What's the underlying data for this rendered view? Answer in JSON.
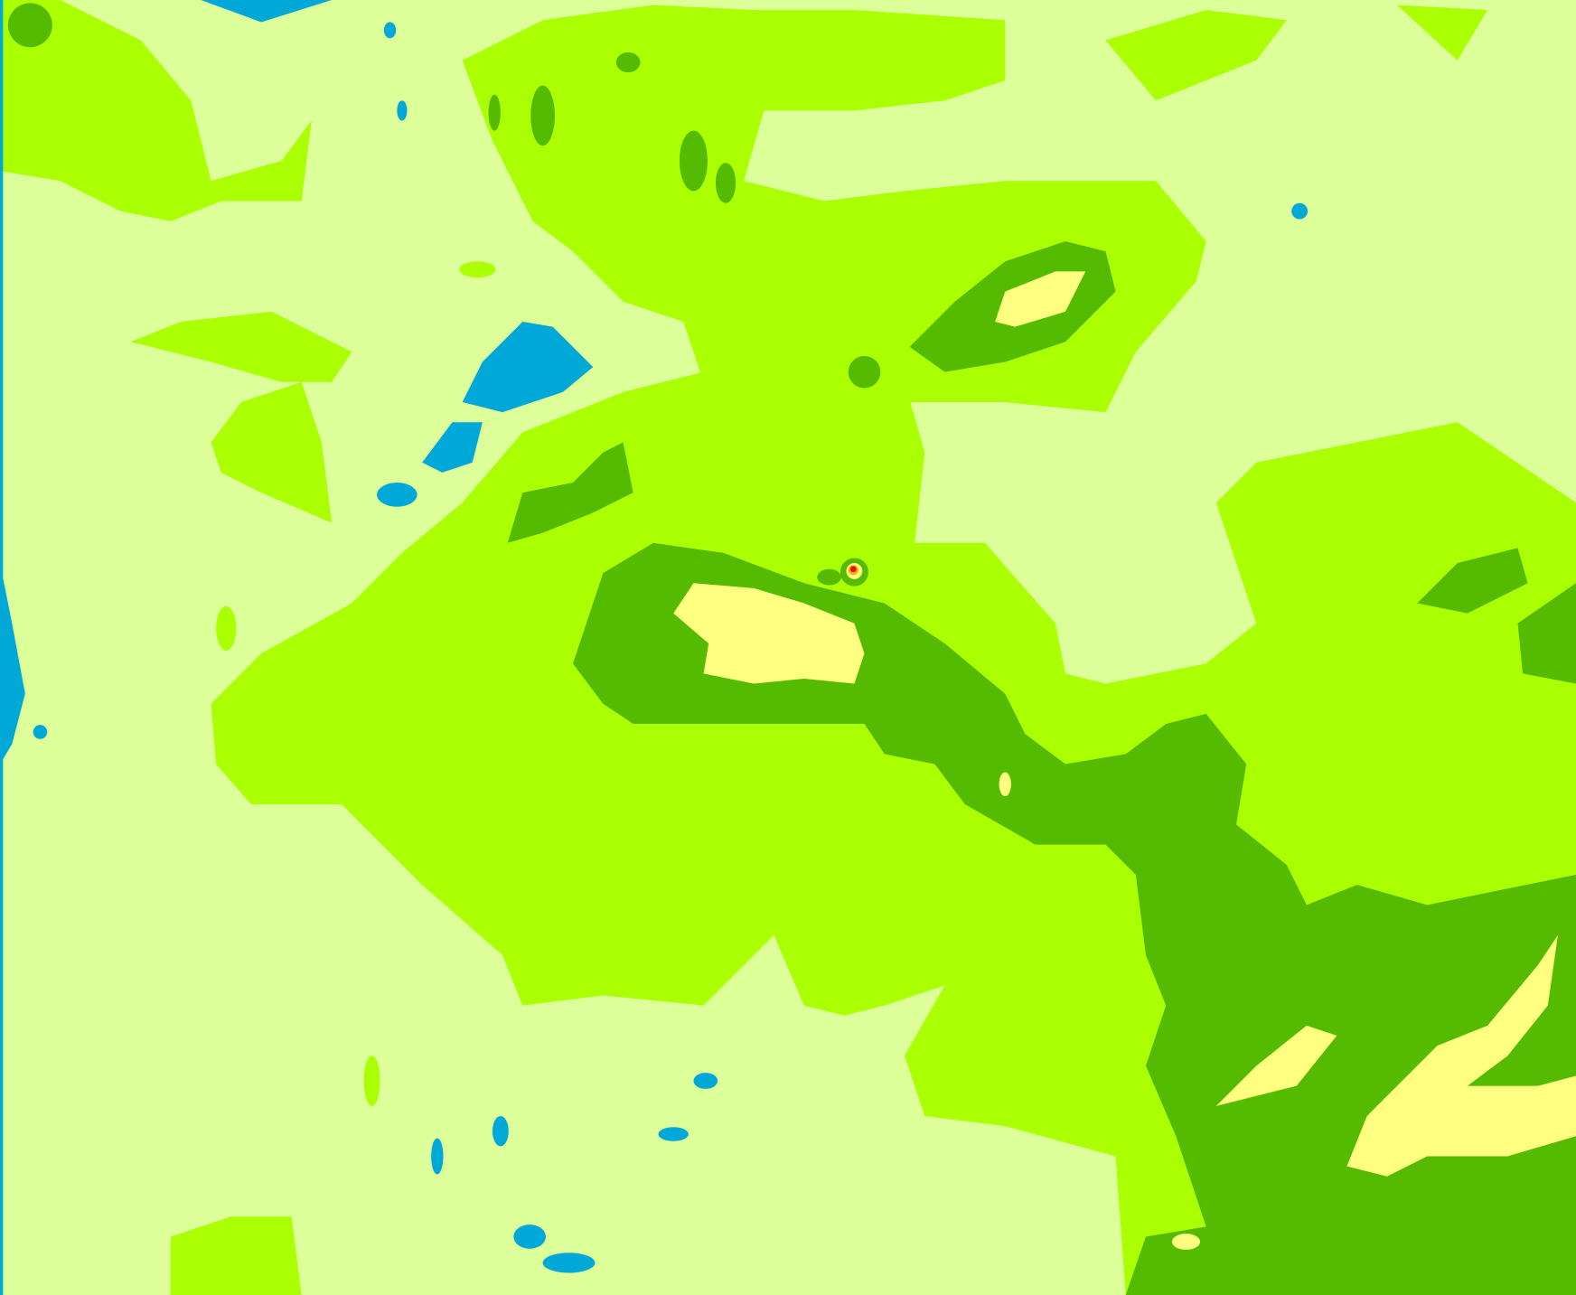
{
  "map": {
    "type": "classified raster",
    "colors": {
      "class_1_water": "#00a8d8",
      "class_2_pale": "#ddff99",
      "class_3_light_green": "#aaff00",
      "class_4_dark_green": "#55bb00",
      "class_5_yellow": "#ffff80",
      "class_6_orange": "#ffaa00",
      "class_7_red": "#dd1100"
    }
  }
}
